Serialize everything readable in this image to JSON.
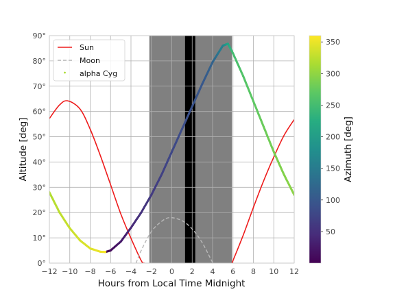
{
  "chart_data": {
    "type": "line",
    "xlabel": "Hours from Local Time Midnight",
    "ylabel": "Altitude [deg]",
    "colorbar_label": "Azimuth [deg]",
    "xlim": [
      -12,
      12
    ],
    "ylim": [
      0,
      90
    ],
    "x_ticks": [
      -12,
      -10,
      -8,
      -6,
      -4,
      -2,
      0,
      2,
      4,
      6,
      8,
      10,
      12
    ],
    "x_tick_labels": [
      "−12",
      "−10",
      "−8",
      "−6",
      "−4",
      "−2",
      "0",
      "2",
      "4",
      "6",
      "8",
      "10",
      "12"
    ],
    "y_ticks": [
      0,
      10,
      20,
      30,
      40,
      50,
      60,
      70,
      80,
      90
    ],
    "y_tick_labels": [
      "0°",
      "10°",
      "20°",
      "30°",
      "40°",
      "50°",
      "60°",
      "70°",
      "80°",
      "90°"
    ],
    "colorbar_ticks": [
      50,
      100,
      150,
      200,
      250,
      300,
      350
    ],
    "colorbar_range": [
      0,
      360
    ],
    "grid": true,
    "legend_position": "top-left",
    "shaded_regions": [
      {
        "kind": "twilight",
        "x": [
          -2.2,
          5.9
        ],
        "color": "#808080"
      },
      {
        "kind": "night",
        "x": [
          1.3,
          2.3
        ],
        "color": "#000000"
      }
    ],
    "series": [
      {
        "name": "Sun",
        "style": "solid",
        "color": "#ee1c1c",
        "points": [
          [
            -12,
            57.2
          ],
          [
            -11,
            62.6
          ],
          [
            -10.2,
            64.2
          ],
          [
            -9,
            61
          ],
          [
            -8,
            53
          ],
          [
            -7,
            42.5
          ],
          [
            -6,
            31
          ],
          [
            -5,
            19.5
          ],
          [
            -4,
            9.8
          ],
          [
            -3,
            1
          ],
          [
            -2.7,
            0
          ]
        ]
      },
      {
        "name": "Sun",
        "style": "solid",
        "color": "#ee1c1c",
        "points": [
          [
            5.9,
            0
          ],
          [
            7,
            11
          ],
          [
            8,
            22
          ],
          [
            9,
            32.5
          ],
          [
            10,
            42
          ],
          [
            11,
            50.5
          ],
          [
            12,
            56.8
          ]
        ]
      },
      {
        "name": "Moon",
        "style": "dashed",
        "color": "#b8b8b8",
        "points": [
          [
            -3.5,
            0
          ],
          [
            -3,
            5
          ],
          [
            -2,
            12.5
          ],
          [
            -1,
            16.5
          ],
          [
            -0.2,
            18
          ],
          [
            1,
            16.8
          ],
          [
            2,
            13.5
          ],
          [
            3,
            8
          ],
          [
            3.9,
            1
          ],
          [
            4.1,
            0
          ]
        ]
      },
      {
        "name": "alpha Cyg",
        "style": "scatter-line",
        "color_by": "azimuth",
        "points": [
          [
            -12,
            28,
            318
          ],
          [
            -11,
            20,
            325
          ],
          [
            -10,
            13.8,
            331
          ],
          [
            -9,
            9,
            337
          ],
          [
            -8,
            5.8,
            343
          ],
          [
            -7,
            4.5,
            350
          ],
          [
            -6.5,
            4.4,
            358
          ],
          [
            -6,
            5,
            10
          ],
          [
            -5,
            8.5,
            25
          ],
          [
            -4,
            14,
            40
          ],
          [
            -3,
            20,
            52
          ],
          [
            -2,
            27,
            62
          ],
          [
            -1,
            35,
            70
          ],
          [
            0,
            44,
            78
          ],
          [
            1,
            53,
            85
          ],
          [
            2,
            62,
            92
          ],
          [
            3,
            71,
            100
          ],
          [
            4,
            79.5,
            115
          ],
          [
            5,
            86,
            160
          ],
          [
            5.5,
            86.8,
            210
          ],
          [
            6,
            83,
            250
          ],
          [
            7,
            74,
            262
          ],
          [
            8,
            64,
            270
          ],
          [
            9,
            54,
            278
          ],
          [
            10,
            44,
            285
          ],
          [
            11,
            35,
            292
          ],
          [
            12,
            27,
            298
          ]
        ]
      }
    ]
  }
}
